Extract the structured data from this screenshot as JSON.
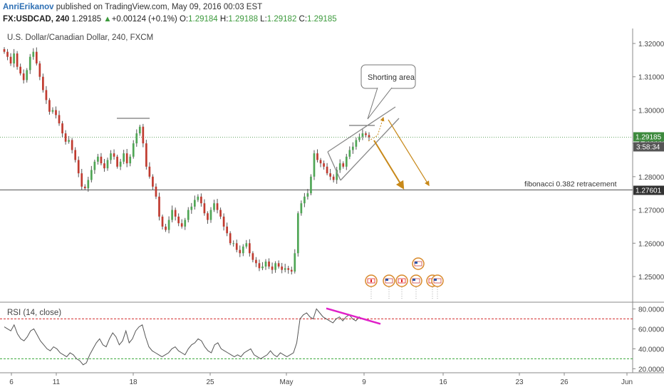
{
  "header": {
    "author": "AnriErikanov",
    "published": "published on TradingView.com, May 09, 2016 00:03 EST",
    "symbol": "FX:USDCAD, 240",
    "last": "1.29185",
    "change_arrow": "▲",
    "change": "+0.00124 (+0.1%)",
    "o_label": "O:",
    "o_value": "1.29184",
    "h_label": "H:",
    "h_value": "1.29188",
    "l_label": "L:",
    "l_value": "1.29182",
    "c_label": "C:",
    "c_value": "1.29185"
  },
  "chart_data": {
    "type": "candlestick",
    "title": "U.S. Dollar/Canadian Dollar, 240, FXCM",
    "x_ticks": [
      "6",
      "11",
      "18",
      "25",
      "May",
      "9",
      "16",
      "23",
      "26",
      "Jun"
    ],
    "y_ticks": [
      "1.32000",
      "1.31000",
      "1.30000",
      "1.29000",
      "1.28000",
      "1.27000",
      "1.26000",
      "1.25000"
    ],
    "ylim": [
      1.2425,
      1.3245
    ],
    "last_price_label": "1.29185",
    "countdown_label": "3:58:34",
    "fib_price_label": "1.27601",
    "fib_level": 1.276,
    "last_price": 1.29185,
    "annotations": {
      "callout": "Shorting area",
      "fib_text": "fibonacci 0.382 retracement"
    },
    "close_path": [
      1.3175,
      1.316,
      1.314,
      1.317,
      1.313,
      1.311,
      1.309,
      1.312,
      1.316,
      1.3175,
      1.314,
      1.31,
      1.306,
      1.303,
      1.2995,
      1.3,
      1.2985,
      1.296,
      1.293,
      1.2905,
      1.291,
      1.288,
      1.285,
      1.281,
      1.277,
      1.2765,
      1.279,
      1.282,
      1.2845,
      1.286,
      1.284,
      1.2825,
      1.285,
      1.287,
      1.286,
      1.283,
      1.2845,
      1.287,
      1.284,
      1.286,
      1.29,
      1.293,
      1.295,
      1.29,
      1.283,
      1.28,
      1.277,
      1.274,
      1.268,
      1.265,
      1.264,
      1.267,
      1.27,
      1.268,
      1.266,
      1.265,
      1.267,
      1.27,
      1.271,
      1.273,
      1.274,
      1.272,
      1.269,
      1.267,
      1.27,
      1.272,
      1.27,
      1.268,
      1.265,
      1.263,
      1.26,
      1.26,
      1.258,
      1.257,
      1.259,
      1.26,
      1.257,
      1.255,
      1.254,
      1.2525,
      1.253,
      1.2545,
      1.253,
      1.252,
      1.254,
      1.253,
      1.252,
      1.2525,
      1.252,
      1.2515,
      1.257,
      1.269,
      1.272,
      1.274,
      1.275,
      1.28,
      1.287,
      1.285,
      1.284,
      1.283,
      1.281,
      1.28,
      1.279,
      1.282,
      1.284,
      1.283,
      1.286,
      1.288,
      1.289,
      1.291,
      1.292,
      1.293,
      1.2925,
      1.29185
    ],
    "shorting_channel": {
      "upper": [
        [
          1.2885,
          1.296
        ],
        [
          1.296,
          1.302
        ]
      ],
      "lower": [
        [
          1.279,
          1.287
        ],
        [
          1.292,
          1.298
        ]
      ]
    },
    "rsi": {
      "label": "RSI (14, close)",
      "y_ticks": [
        "80.0000",
        "60.0000",
        "40.0000",
        "20.0000"
      ],
      "ylim": [
        16,
        86
      ],
      "overbought": 70,
      "oversold": 30,
      "values": [
        62,
        60,
        58,
        64,
        55,
        50,
        48,
        52,
        58,
        60,
        54,
        48,
        44,
        40,
        38,
        42,
        40,
        36,
        34,
        32,
        36,
        34,
        30,
        28,
        24,
        26,
        34,
        40,
        46,
        50,
        44,
        42,
        50,
        56,
        52,
        44,
        48,
        58,
        46,
        50,
        58,
        62,
        64,
        52,
        42,
        38,
        36,
        34,
        32,
        34,
        36,
        40,
        42,
        38,
        36,
        34,
        40,
        44,
        46,
        50,
        48,
        42,
        38,
        36,
        44,
        46,
        40,
        38,
        36,
        34,
        32,
        34,
        32,
        36,
        38,
        40,
        34,
        32,
        30,
        32,
        34,
        38,
        34,
        32,
        36,
        34,
        32,
        34,
        36,
        46,
        70,
        74,
        76,
        72,
        70,
        80,
        76,
        72,
        70,
        68,
        66,
        70,
        72,
        68,
        72,
        74,
        70,
        68,
        72,
        70,
        69,
        68
      ],
      "divergence_line": [
        [
          79,
          67
        ]
      ]
    },
    "colors": {
      "up": "#50a656",
      "down": "#c03b30",
      "wick": "#555555",
      "fib_line": "#555555",
      "channel": "#888888",
      "arrow": "#c8891a",
      "divergence": "#e020c8",
      "overbought": "#d22d2d",
      "oversold": "#38a838",
      "price_line": "#6aa86a",
      "last_price_bg": "#3d8a3d",
      "fib_price_bg": "#333333"
    }
  }
}
